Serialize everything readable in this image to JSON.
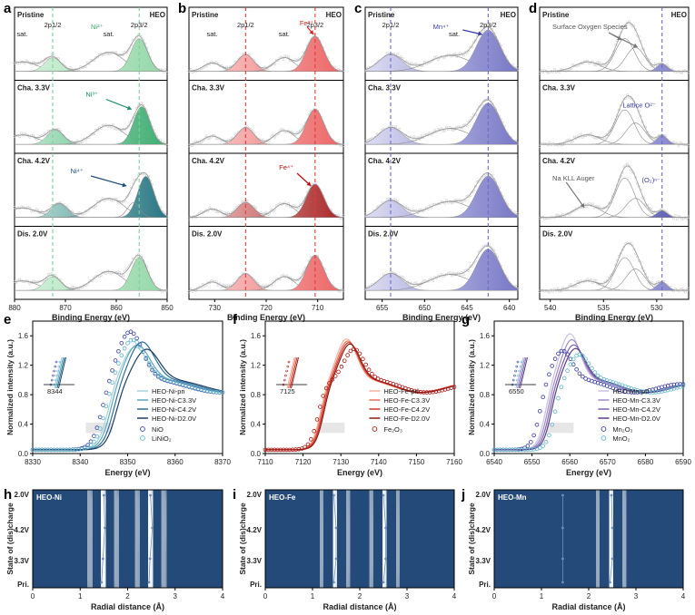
{
  "chart_data": [
    {
      "panel": "a",
      "type": "line",
      "xlabel": "Binding Energy (eV)",
      "xlim": [
        880,
        850
      ],
      "xticks": [
        880,
        870,
        860,
        850
      ],
      "header": "HEO",
      "states": [
        "Pristine",
        "Cha. 3.3V",
        "Cha. 4.2V",
        "Dis. 2.0V"
      ],
      "guides": [
        872.5,
        855.5
      ],
      "guide_color": "#7ecf9b",
      "peaks": [
        {
          "label": "sat.",
          "center": 878.5
        },
        {
          "label": "2p1/2",
          "center": 872.5
        },
        {
          "label": "sat.",
          "center": 861.5
        },
        {
          "label": "2p3/2",
          "center": 855.5
        }
      ],
      "annotations": [
        {
          "text": "Ni²⁺",
          "state": 0,
          "color": "#3aa567"
        },
        {
          "text": "Ni³⁺",
          "state": 1,
          "color": "#1a8a6a"
        },
        {
          "text": "Ni⁴⁺",
          "state": 2,
          "color": "#1e4e78"
        }
      ]
    },
    {
      "panel": "b",
      "type": "line",
      "xlabel": "Binding Energy (eV)",
      "xlim": [
        735,
        705
      ],
      "xticks": [
        730,
        720,
        710
      ],
      "header": "HEO",
      "states": [
        "Pristine",
        "Cha. 3.3V",
        "Cha. 4.2V",
        "Dis. 2.0V"
      ],
      "guides": [
        724.0,
        710.5
      ],
      "guide_color": "#e23b3b",
      "peaks": [
        {
          "label": "sat.",
          "center": 730.5
        },
        {
          "label": "2p1/2",
          "center": 724.0
        },
        {
          "label": "sat.",
          "center": 716.5
        },
        {
          "label": "2p3/2",
          "center": 710.5
        }
      ],
      "annotations": [
        {
          "text": "Fe³⁺",
          "state": 0,
          "color": "#d62020"
        },
        {
          "text": "Fe⁴⁺",
          "state": 2,
          "color": "#b81010"
        }
      ]
    },
    {
      "panel": "c",
      "type": "line",
      "xlabel": "Binding Energy (eV)",
      "xlim": [
        657,
        639
      ],
      "xticks": [
        655,
        650,
        645,
        640
      ],
      "header": "HEO",
      "states": [
        "Pristine",
        "Cha. 3.3V",
        "Cha. 4.2V",
        "Dis. 2.0V"
      ],
      "guides": [
        654.0,
        642.5
      ],
      "guide_color": "#6a6ac8",
      "peaks": [
        {
          "label": "2p1/2",
          "center": 654.0
        },
        {
          "label": "sat.",
          "center": 646.5
        },
        {
          "label": "2p3/2",
          "center": 642.5
        }
      ],
      "annotations": [
        {
          "text": "Mn⁴⁺",
          "state": 0,
          "color": "#3a3aa0"
        }
      ]
    },
    {
      "panel": "d",
      "type": "line",
      "xlabel": "Binding Energy (eV)",
      "xlim": [
        541,
        527
      ],
      "xticks": [
        540,
        535,
        530
      ],
      "header": "HEO",
      "states": [
        "Pristine",
        "Cha. 3.3V",
        "Cha. 4.2V",
        "Dis. 2.0V"
      ],
      "guides": [
        529.5
      ],
      "guide_color": "#6a6ac8",
      "annotations": [
        {
          "text": "Surface Oxygen Species",
          "state": 0,
          "color": "#555555"
        },
        {
          "text": "Lattice O²⁻",
          "state": 1,
          "color": "#3a3aa0"
        },
        {
          "text": "Na KLL Auger",
          "state": 2,
          "color": "#555555"
        },
        {
          "text": "(O₂)ⁿ⁻",
          "state": 2,
          "color": "#3a3aa0"
        }
      ]
    },
    {
      "panel": "e",
      "type": "line",
      "xlabel": "Energy (eV)",
      "ylabel": "Normalized intensity (a.u.)",
      "xlim": [
        8330,
        8370
      ],
      "ylim": [
        0,
        1.8
      ],
      "xticks": [
        8330,
        8340,
        8350,
        8360,
        8370
      ],
      "yticks": [
        0.0,
        0.4,
        0.8,
        1.2,
        1.6
      ],
      "inset_label": "8344",
      "series": [
        {
          "name": "HEO-Ni-pri",
          "color": "#a7d3dc",
          "edge": 8345.8,
          "peak": 8351.5,
          "height": 1.45
        },
        {
          "name": "HEO-Ni-C3.3V",
          "color": "#5fa9bc",
          "edge": 8346.3,
          "peak": 8352.0,
          "height": 1.48
        },
        {
          "name": "HEO-Ni-C4.2V",
          "color": "#2e6f99",
          "edge": 8346.9,
          "peak": 8353.0,
          "height": 1.52
        },
        {
          "name": "HEO-Ni-D2.0V",
          "color": "#1d3e66",
          "edge": 8347.5,
          "peak": 8354.0,
          "height": 1.42
        }
      ],
      "references": [
        {
          "name": "NiO",
          "color": "#3b3fa8",
          "edge": 8344.5,
          "peak": 8350.5,
          "height": 1.66
        },
        {
          "name": "LiNiO₂",
          "color": "#5fb8c8",
          "edge": 8345.2,
          "peak": 8351.0,
          "height": 1.55
        }
      ]
    },
    {
      "panel": "f",
      "type": "line",
      "xlabel": "Energy (eV)",
      "ylabel": "Normalized intensity (a.u.)",
      "xlim": [
        7110,
        7160
      ],
      "ylim": [
        0,
        1.8
      ],
      "xticks": [
        7110,
        7120,
        7130,
        7140,
        7150,
        7160
      ],
      "yticks": [
        0.0,
        0.4,
        0.8,
        1.2,
        1.6
      ],
      "inset_label": "7125",
      "series": [
        {
          "name": "HEO-Fe-pri",
          "color": "#f5b0a0",
          "edge": 7124.5,
          "peak": 7131.5,
          "height": 1.56
        },
        {
          "name": "HEO-Fe-C3.3V",
          "color": "#e8745e",
          "edge": 7124.8,
          "peak": 7131.8,
          "height": 1.53
        },
        {
          "name": "HEO-Fe-C4.2V",
          "color": "#cc3a2a",
          "edge": 7125.1,
          "peak": 7132.1,
          "height": 1.51
        },
        {
          "name": "HEO-Fe-D2.0V",
          "color": "#8c1a14",
          "edge": 7125.4,
          "peak": 7132.4,
          "height": 1.49
        }
      ],
      "references": [
        {
          "name": "Fe₂O₃",
          "color": "#b01818",
          "edge": 7124.0,
          "peak": 7133.5,
          "height": 1.42
        }
      ]
    },
    {
      "panel": "g",
      "type": "line",
      "xlabel": "Energy (eV)",
      "ylabel": "Normalized intensity (a.u.)",
      "xlim": [
        6540,
        6590
      ],
      "ylim": [
        0,
        1.8
      ],
      "xticks": [
        6540,
        6550,
        6560,
        6570,
        6580,
        6590
      ],
      "yticks": [
        0.0,
        0.4,
        0.8,
        1.2,
        1.6
      ],
      "inset_label": "6550",
      "series": [
        {
          "name": "HEO-Mn-pri",
          "color": "#c9c0e0",
          "edge": 6553.5,
          "peak": 6560.0,
          "height": 1.63
        },
        {
          "name": "HEO-Mn-C3.3V",
          "color": "#9e8cc8",
          "edge": 6554.0,
          "peak": 6560.5,
          "height": 1.55
        },
        {
          "name": "HEO-Mn-C4.2V",
          "color": "#7e62ae",
          "edge": 6554.5,
          "peak": 6561.0,
          "height": 1.48
        },
        {
          "name": "HEO-Mn-D2.0V",
          "color": "#5a3c88",
          "edge": 6555.0,
          "peak": 6561.5,
          "height": 1.43
        }
      ],
      "references": [
        {
          "name": "Mn₂O₃",
          "color": "#3b3fa8",
          "edge": 6552.0,
          "peak": 6558.0,
          "height": 1.4
        },
        {
          "name": "MnO₂",
          "color": "#5fb8c8",
          "edge": 6556.0,
          "peak": 6562.5,
          "height": 1.35
        }
      ]
    },
    {
      "panel": "h",
      "type": "heatmap",
      "label": "HEO-Ni",
      "xlabel": "Radial distance (Å)",
      "ylabel": "State of (dis)charge",
      "xlim": [
        0,
        4
      ],
      "xticks": [
        0,
        1,
        2,
        3,
        4
      ],
      "yticks": [
        "Pri.",
        "3.3V",
        "4.2V",
        "2.0V"
      ],
      "ridges": [
        {
          "pri": 1.45,
          "v33": 1.48,
          "v42": 1.52,
          "v20": 1.5
        },
        {
          "pri": 2.45,
          "v33": 2.47,
          "v42": 2.52,
          "v20": 2.48
        }
      ]
    },
    {
      "panel": "i",
      "type": "heatmap",
      "label": "HEO-Fe",
      "xlabel": "Radial distance (Å)",
      "ylabel": "State of (dis)charge",
      "xlim": [
        0,
        4
      ],
      "xticks": [
        0,
        1,
        2,
        3,
        4
      ],
      "yticks": [
        "Pri.",
        "3.3V",
        "4.2V",
        "2.0V"
      ],
      "ridges": [
        {
          "pri": 1.45,
          "v33": 1.5,
          "v42": 1.5,
          "v20": 1.45
        },
        {
          "pri": 2.5,
          "v33": 2.55,
          "v42": 2.55,
          "v20": 2.5
        }
      ]
    },
    {
      "panel": "j",
      "type": "heatmap",
      "label": "HEO-Mn",
      "xlabel": "Radial distance (Å)",
      "ylabel": "State of (dis)charge",
      "xlim": [
        0,
        4
      ],
      "xticks": [
        0,
        1,
        2,
        3,
        4
      ],
      "yticks": [
        "Pri.",
        "3.3V",
        "4.2V",
        "2.0V"
      ],
      "ridges": [
        {
          "pri": 1.45,
          "v33": 1.45,
          "v42": 1.45,
          "v20": 1.45
        },
        {
          "pri": 2.45,
          "v33": 2.5,
          "v42": 2.5,
          "v20": 2.48
        }
      ]
    }
  ]
}
